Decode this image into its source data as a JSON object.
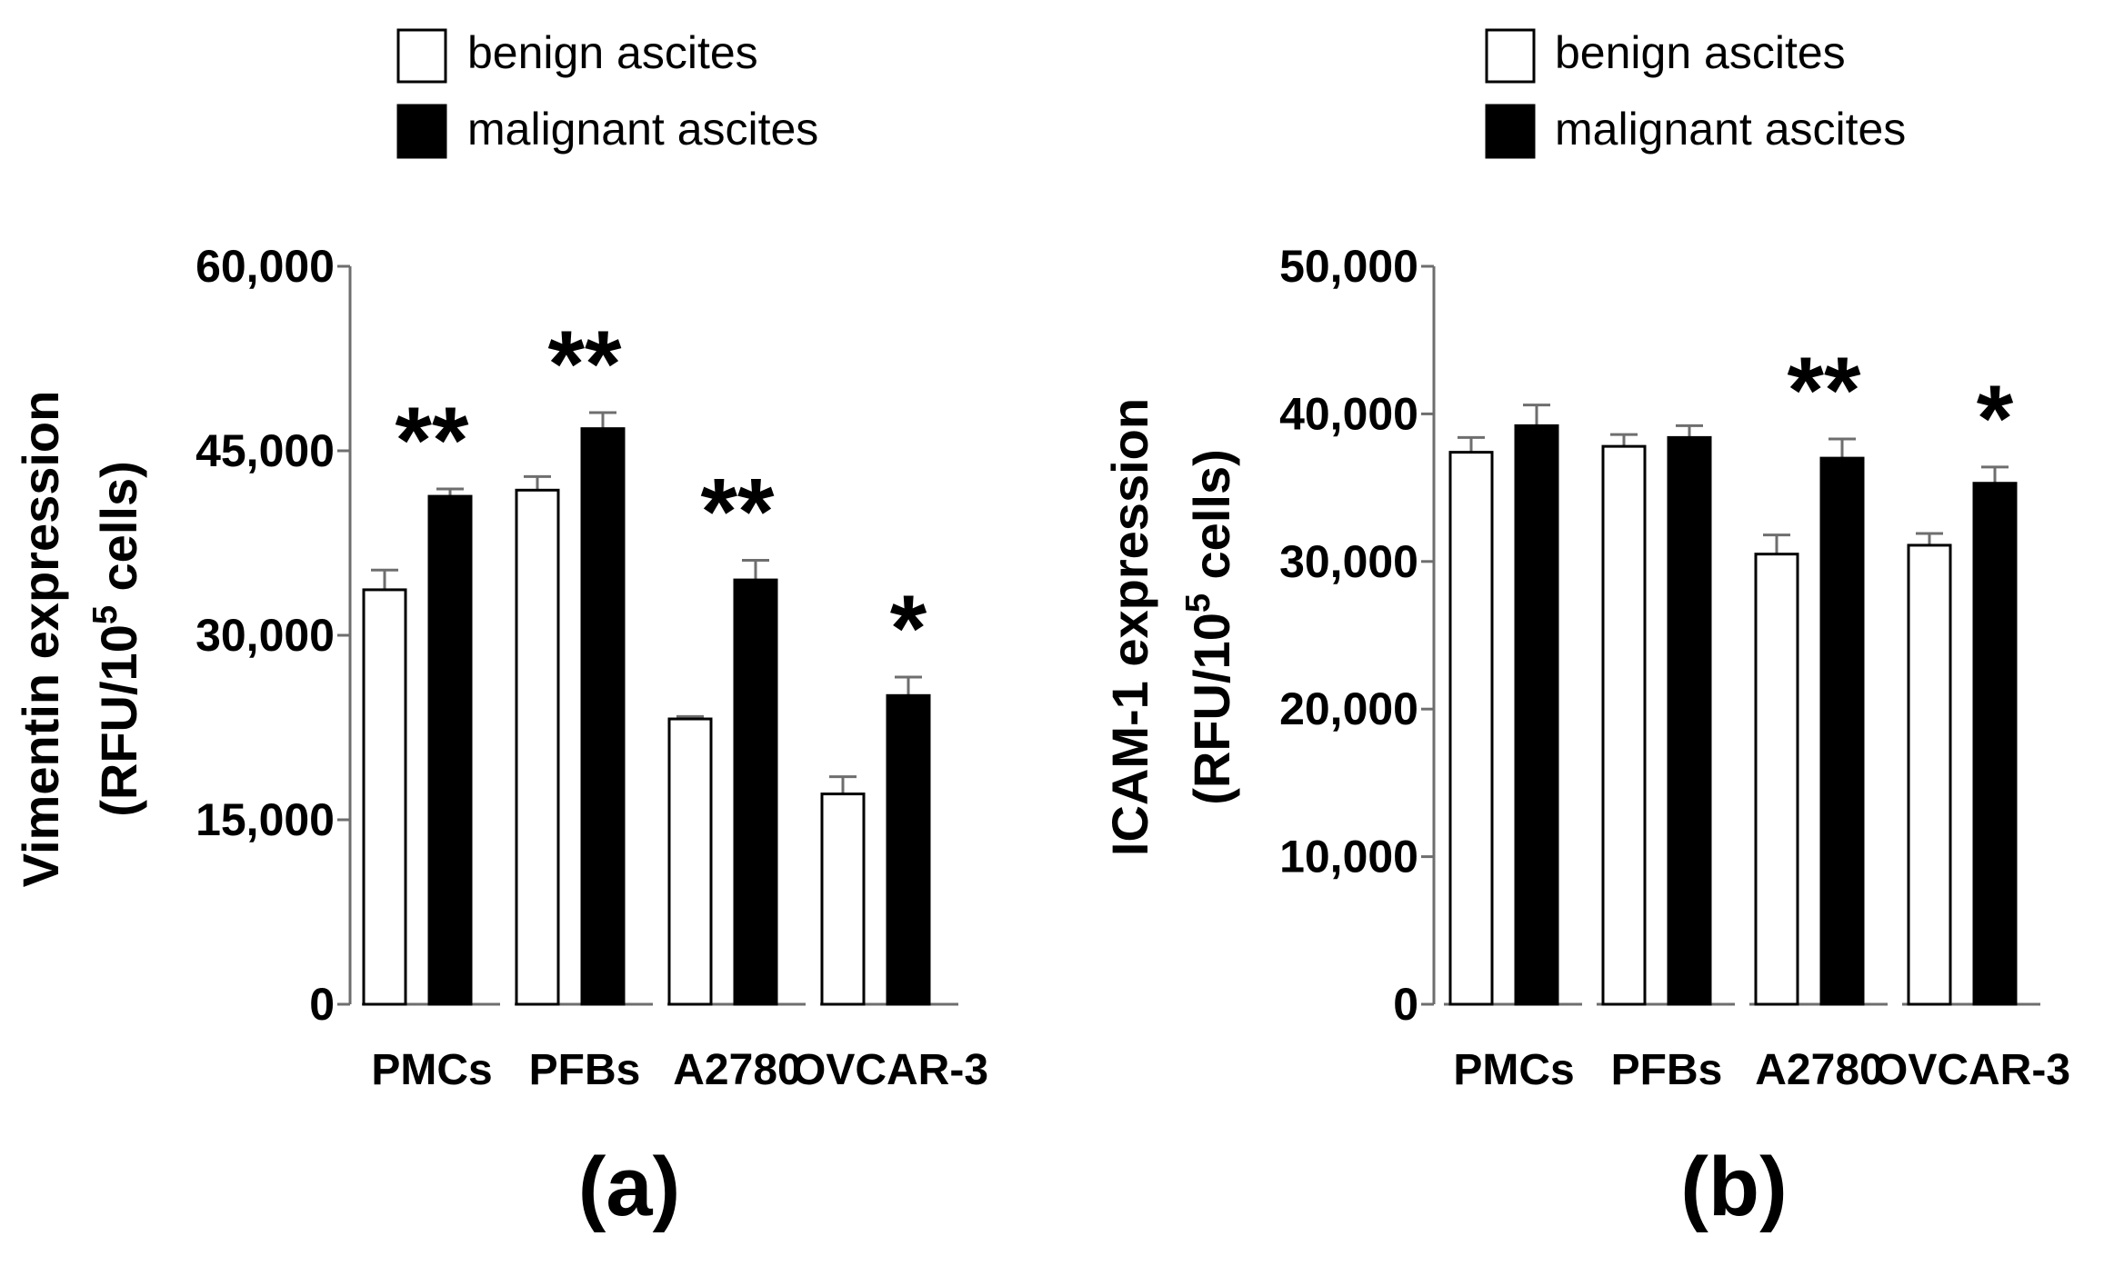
{
  "figure": {
    "legend": [
      {
        "name": "benign ascites",
        "color": "#ffffff"
      },
      {
        "name": "malignant ascites",
        "color": "#000000"
      }
    ]
  },
  "chart_data": [
    {
      "type": "bar",
      "panel_label": "(a)",
      "categories": [
        "PMCs",
        "PFBs",
        "A2780",
        "OVCAR-3"
      ],
      "ylabel_line1": "Vimentin expression",
      "ylabel_line2_prefix": "(RFU/10",
      "ylabel_line2_sup": "5",
      "ylabel_line2_suffix": " cells)",
      "ylim": [
        0,
        60000
      ],
      "yticks": [
        0,
        15000,
        30000,
        45000,
        60000
      ],
      "ytick_labels": [
        "0",
        "15,000",
        "30,000",
        "45,000",
        "60,000"
      ],
      "series": [
        {
          "name": "benign ascites",
          "color": "#ffffff",
          "values": [
            33700,
            41800,
            23200,
            17100
          ],
          "errors": [
            1600,
            1100,
            200,
            1400
          ]
        },
        {
          "name": "malignant ascites",
          "color": "#000000",
          "values": [
            41300,
            46800,
            34500,
            25100
          ],
          "errors": [
            600,
            1300,
            1600,
            1500
          ]
        }
      ],
      "significance": [
        "**",
        "**",
        "**",
        "*"
      ]
    },
    {
      "type": "bar",
      "panel_label": "(b)",
      "categories": [
        "PMCs",
        "PFBs",
        "A2780",
        "OVCAR-3"
      ],
      "ylabel_line1": "ICAM-1 expression",
      "ylabel_line2_prefix": "(RFU/10",
      "ylabel_line2_sup": "5",
      "ylabel_line2_suffix": " cells)",
      "ylim": [
        0,
        50000
      ],
      "yticks": [
        0,
        10000,
        20000,
        30000,
        40000,
        50000
      ],
      "ytick_labels": [
        "0",
        "10,000",
        "20,000",
        "30,000",
        "40,000",
        "50,000"
      ],
      "series": [
        {
          "name": "benign ascites",
          "color": "#ffffff",
          "values": [
            37400,
            37800,
            30500,
            31100
          ],
          "errors": [
            1000,
            800,
            1300,
            800
          ]
        },
        {
          "name": "malignant ascites",
          "color": "#000000",
          "values": [
            39200,
            38400,
            37000,
            35300
          ],
          "errors": [
            1400,
            800,
            1300,
            1100
          ]
        }
      ],
      "significance": [
        "",
        "",
        "**",
        "*"
      ]
    }
  ]
}
